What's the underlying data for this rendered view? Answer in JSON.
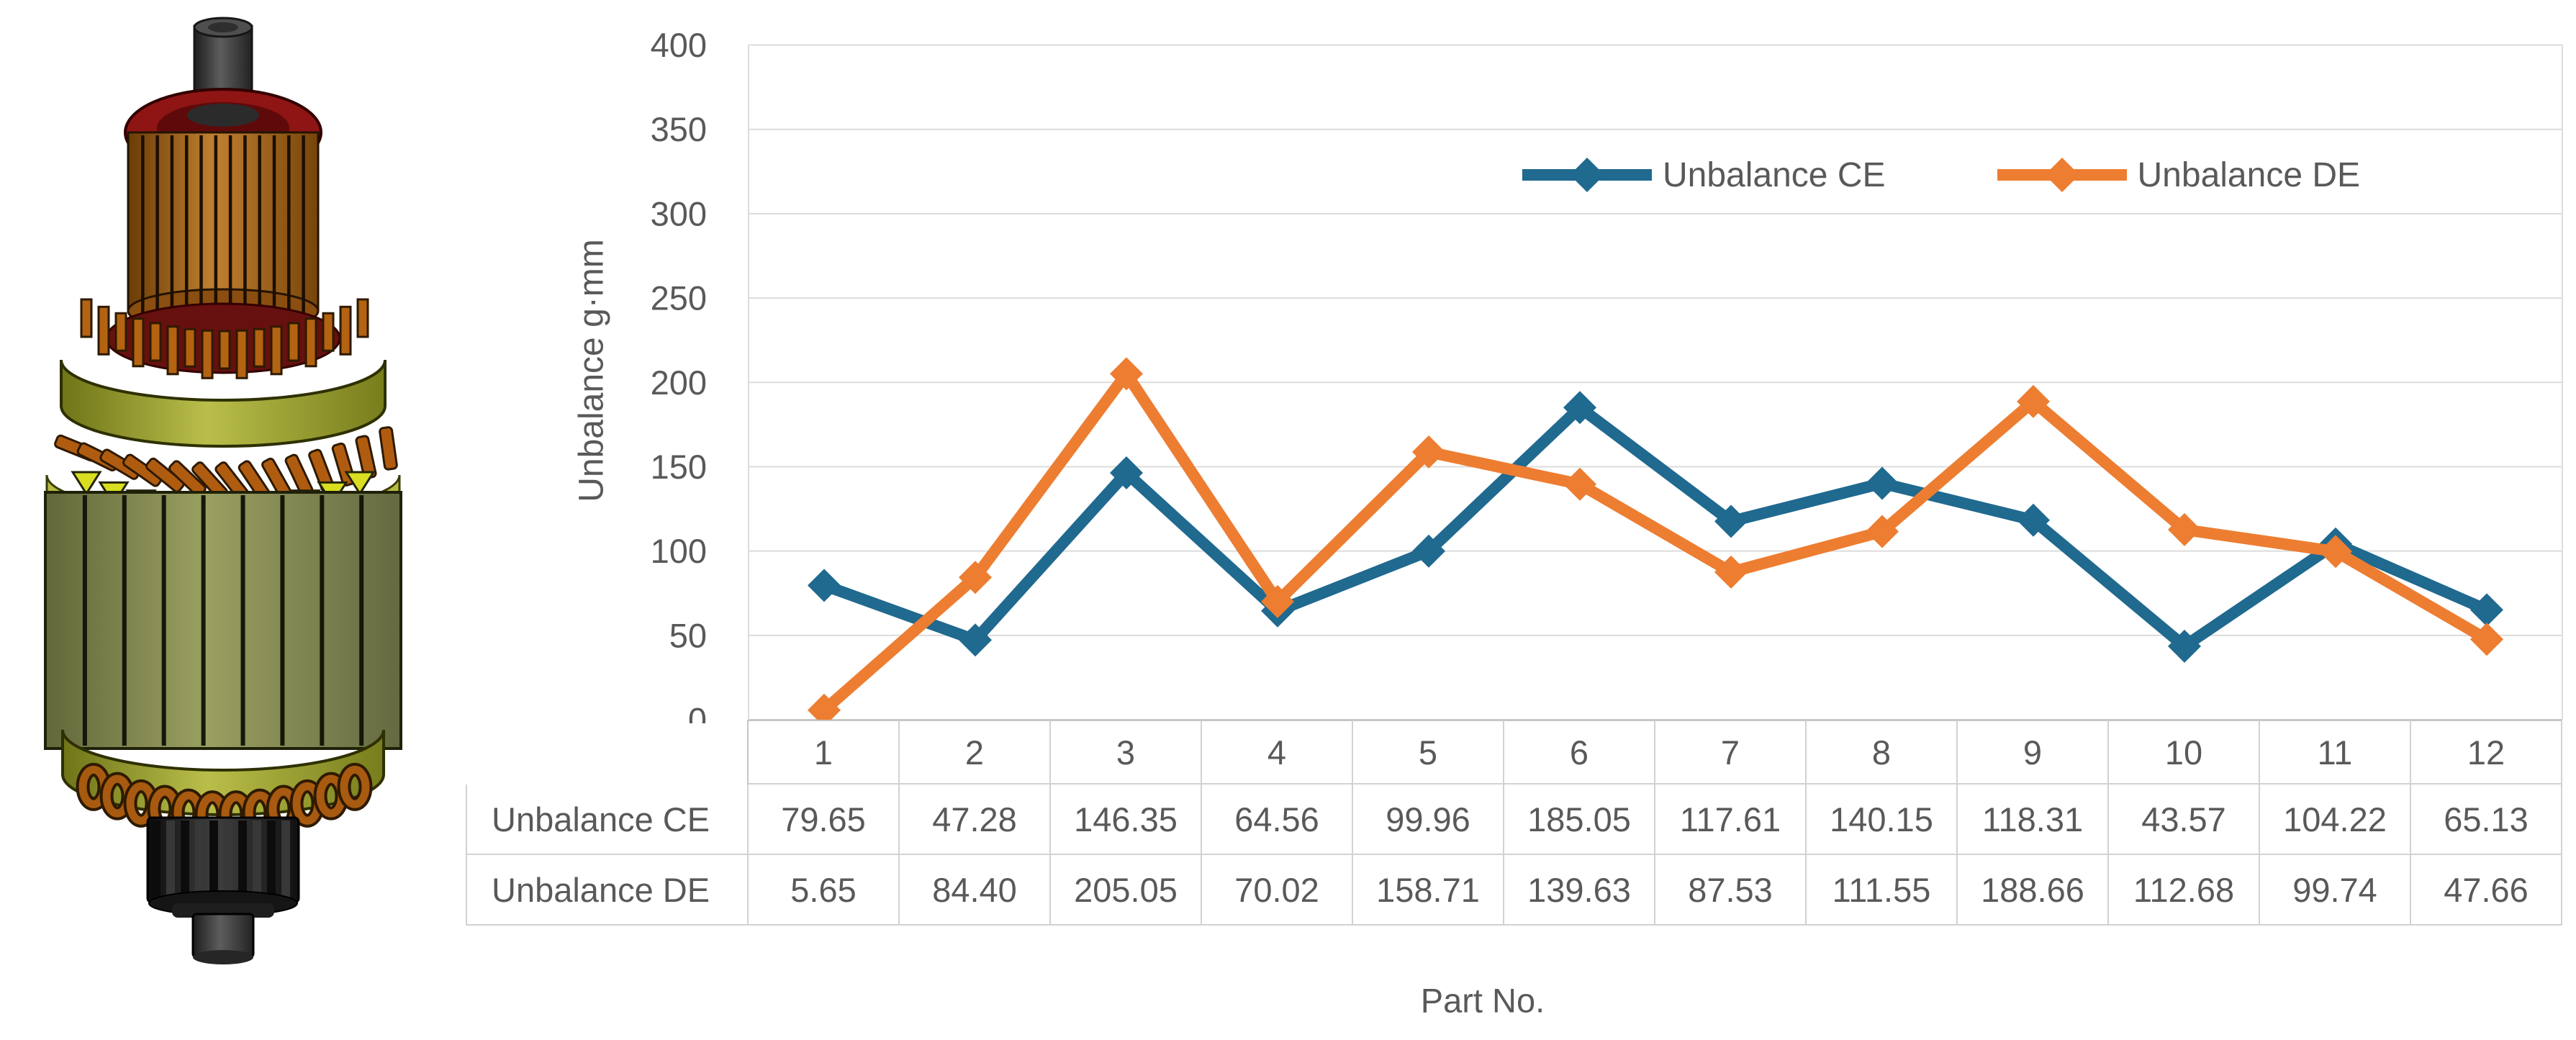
{
  "figure": {
    "alt": "3D CAD rendering of an electric motor armature rotor with commutator, windings, laminated core and shaft"
  },
  "chart": {
    "y_axis_title": "Unbalance g·mm",
    "x_axis_title": "Part No."
  },
  "chart_data": {
    "type": "line",
    "title": "",
    "xlabel": "Part No.",
    "ylabel": "Unbalance g·mm",
    "categories": [
      1,
      2,
      3,
      4,
      5,
      6,
      7,
      8,
      9,
      10,
      11,
      12
    ],
    "series": [
      {
        "name": "Unbalance CE",
        "color": "#20698F",
        "values": [
          79.65,
          47.28,
          146.35,
          64.56,
          99.96,
          185.05,
          117.61,
          140.15,
          118.31,
          43.57,
          104.22,
          65.13
        ]
      },
      {
        "name": "Unbalance DE",
        "color": "#ED7D31",
        "values": [
          5.65,
          84.4,
          205.05,
          70.02,
          158.71,
          139.63,
          87.53,
          111.55,
          188.66,
          112.68,
          99.74,
          47.66
        ]
      }
    ],
    "ylim": [
      0,
      400
    ],
    "ytick_step": 50,
    "grid": true,
    "gridline_color": "#DCDCDC",
    "axis_text_color": "#595959",
    "legend_position": "inside-top-right",
    "marker": "diamond",
    "data_table_shown": true
  }
}
